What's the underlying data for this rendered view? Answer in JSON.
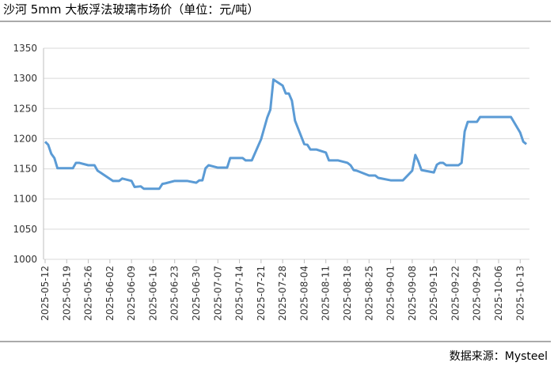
{
  "chart_data": {
    "type": "line",
    "title": "沙河 5mm 大板浮法玻璃市场价（单位：元/吨）",
    "source": "数据来源：Mysteel",
    "x": [
      "2025-05-12",
      "2025-05-13",
      "2025-05-14",
      "2025-05-15",
      "2025-05-16",
      "2025-05-21",
      "2025-05-22",
      "2025-05-23",
      "2025-05-26",
      "2025-05-28",
      "2025-05-29",
      "2025-06-03",
      "2025-06-05",
      "2025-06-06",
      "2025-06-09",
      "2025-06-10",
      "2025-06-12",
      "2025-06-13",
      "2025-06-18",
      "2025-06-19",
      "2025-06-20",
      "2025-06-23",
      "2025-06-27",
      "2025-06-30",
      "2025-07-01",
      "2025-07-02",
      "2025-07-03",
      "2025-07-04",
      "2025-07-07",
      "2025-07-10",
      "2025-07-11",
      "2025-07-15",
      "2025-07-16",
      "2025-07-18",
      "2025-07-21",
      "2025-07-23",
      "2025-07-24",
      "2025-07-25",
      "2025-07-28",
      "2025-07-29",
      "2025-07-30",
      "2025-07-31",
      "2025-08-01",
      "2025-08-04",
      "2025-08-05",
      "2025-08-06",
      "2025-08-08",
      "2025-08-11",
      "2025-08-12",
      "2025-08-15",
      "2025-08-18",
      "2025-08-19",
      "2025-08-20",
      "2025-08-21",
      "2025-08-25",
      "2025-08-27",
      "2025-08-28",
      "2025-08-29",
      "2025-09-01",
      "2025-09-05",
      "2025-09-08",
      "2025-09-09",
      "2025-09-10",
      "2025-09-11",
      "2025-09-15",
      "2025-09-16",
      "2025-09-17",
      "2025-09-18",
      "2025-09-19",
      "2025-09-23",
      "2025-09-24",
      "2025-09-25",
      "2025-09-26",
      "2025-09-29",
      "2025-09-30",
      "2025-10-10",
      "2025-10-13",
      "2025-10-14",
      "2025-10-15"
    ],
    "series": [
      {
        "name": "沙河 5mm 大板浮法玻璃市场价",
        "color": "#5b9bd5",
        "values": [
          1195,
          1190,
          1175,
          1168,
          1151,
          1151,
          1160,
          1160,
          1156,
          1156,
          1147,
          1130,
          1130,
          1134,
          1130,
          1120,
          1121,
          1117,
          1117,
          1125,
          1126,
          1130,
          1130,
          1127,
          1131,
          1131,
          1151,
          1156,
          1152,
          1152,
          1168,
          1168,
          1164,
          1164,
          1199,
          1235,
          1248,
          1298,
          1288,
          1275,
          1275,
          1263,
          1230,
          1191,
          1190,
          1182,
          1182,
          1177,
          1164,
          1164,
          1160,
          1156,
          1148,
          1147,
          1139,
          1139,
          1135,
          1134,
          1131,
          1131,
          1147,
          1173,
          1162,
          1148,
          1144,
          1157,
          1160,
          1160,
          1156,
          1156,
          1160,
          1212,
          1228,
          1228,
          1236,
          1236,
          1210,
          1195,
          1191
        ]
      }
    ],
    "xlim": [
      "2025-05-12",
      "2025-10-16"
    ],
    "xticks": [
      "2025-05-12",
      "2025-05-19",
      "2025-05-26",
      "2025-06-02",
      "2025-06-09",
      "2025-06-16",
      "2025-06-23",
      "2025-06-30",
      "2025-07-07",
      "2025-07-14",
      "2025-07-21",
      "2025-07-28",
      "2025-08-04",
      "2025-08-11",
      "2025-08-18",
      "2025-08-25",
      "2025-09-01",
      "2025-09-08",
      "2025-09-15",
      "2025-09-22",
      "2025-09-29",
      "2025-10-06",
      "2025-10-13"
    ],
    "ylim": [
      1000,
      1350
    ],
    "yticks": [
      1000,
      1050,
      1100,
      1150,
      1200,
      1250,
      1300,
      1350
    ],
    "grid": true
  }
}
